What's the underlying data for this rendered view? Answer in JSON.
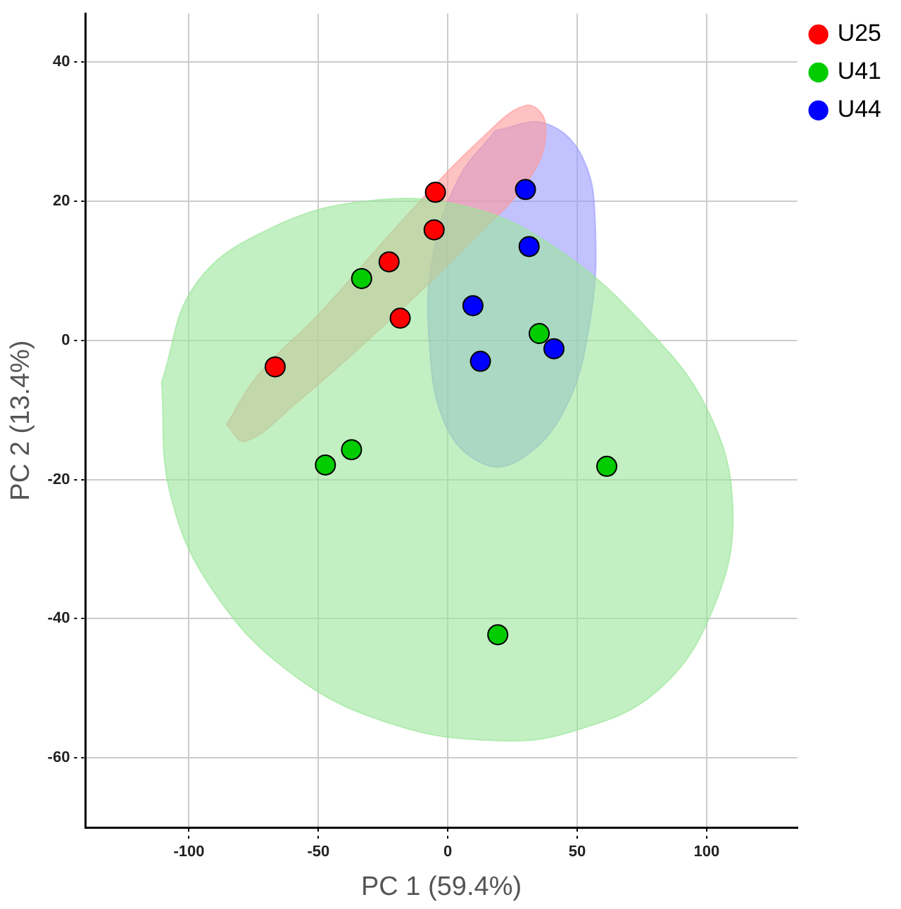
{
  "chart_data": {
    "type": "scatter",
    "xlabel": "PC 1 (59.4%)",
    "ylabel": "PC 2 (13.4%)",
    "xlim": [
      -140,
      135
    ],
    "ylim": [
      -70,
      47
    ],
    "xticks": [
      -100,
      -50,
      0,
      50,
      100
    ],
    "yticks": [
      -60,
      -40,
      -20,
      0,
      20,
      40
    ],
    "grid": true,
    "legend": "top right",
    "marker": "circle",
    "series": [
      {
        "type": "area",
        "marker": "none",
        "color": "#99e699",
        "x": [
          -110.6,
          -97.6,
          -68.6,
          -30.0,
          8.7,
          42.5,
          76.3,
          100.5,
          110.1,
          102.9,
          81.2,
          47.3,
          18.4,
          -20.3,
          -58.9,
          -90.3,
          -107.2
        ],
        "values": [
          -6.0,
          8.0,
          16.1,
          20.1,
          19.1,
          13.1,
          2.0,
          -10.1,
          -24.1,
          -38.2,
          -50.3,
          -56.3,
          -57.5,
          -55.3,
          -48.3,
          -36.2,
          -22.1
        ]
      },
      {
        "type": "area",
        "marker": "none",
        "color": "#ff9999",
        "x": [
          -85.5,
          -73.4,
          -49.3,
          -15.5,
          13.5,
          30.4,
          37.7,
          32.9,
          8.7,
          -25.1,
          -58.9,
          -78.3
        ],
        "values": [
          -12.1,
          -5.0,
          4.0,
          18.1,
          29.2,
          33.8,
          31.2,
          24.1,
          14.1,
          2.0,
          -9.1,
          -14.5
        ]
      },
      {
        "type": "area",
        "marker": "none",
        "color": "#9999ff",
        "x": [
          18.4,
          37.7,
          52.2,
          57.0,
          54.6,
          44.9,
          28.0,
          13.5,
          -1.0,
          -7.2,
          -5.8,
          3.9
        ],
        "values": [
          30.2,
          31.2,
          26.2,
          16.1,
          2.0,
          -10.1,
          -17.1,
          -17.7,
          -12.1,
          0,
          12.1,
          23.1
        ]
      },
      {
        "name": "U25",
        "color": "#ff0000",
        "x": [
          -66.7,
          -22.7,
          -18.4,
          -5.3,
          -4.8
        ],
        "values": [
          -3.8,
          11.3,
          3.2,
          15.9,
          21.3
        ]
      },
      {
        "name": "U41",
        "color": "#00cc00",
        "x": [
          -33.3,
          -47.3,
          -37.2,
          35.3,
          61.4,
          19.3
        ],
        "values": [
          8.9,
          -17.9,
          -15.7,
          1.0,
          -18.1,
          -42.3
        ]
      },
      {
        "name": "U44",
        "color": "#0000ff",
        "x": [
          30.0,
          31.4,
          9.7,
          12.6,
          41.0
        ],
        "values": [
          21.7,
          13.5,
          5.0,
          -3.0,
          -1.2
        ]
      }
    ]
  }
}
